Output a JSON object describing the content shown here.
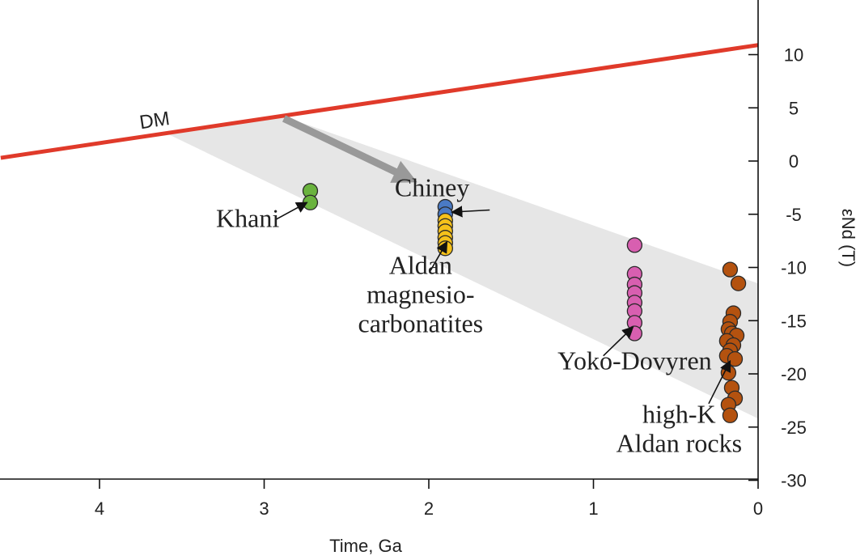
{
  "chart_data": {
    "type": "scatter",
    "title": "",
    "xlabel": "Time, Ga",
    "ylabel": "εNd (T)",
    "xlim": [
      4.6,
      0
    ],
    "ylim": [
      -30,
      14
    ],
    "xticks": [
      4,
      3,
      2,
      1,
      0
    ],
    "yticks": [
      10,
      5,
      0,
      -5,
      -10,
      -15,
      -20,
      -25,
      -30
    ],
    "grid": false,
    "legend": "none",
    "dm_line": {
      "label": "DM",
      "color": "#e03a2a",
      "points": [
        {
          "x": 4.6,
          "y": 0.3
        },
        {
          "x": 0,
          "y": 10.9
        }
      ]
    },
    "evolution_band": {
      "color": "#e6e6e6",
      "polygon": [
        {
          "x": 3.58,
          "y": 2.5
        },
        {
          "x": 2.9,
          "y": 4.3
        },
        {
          "x": 0,
          "y": -11.5
        },
        {
          "x": 0,
          "y": -24.2
        }
      ]
    },
    "trend_arrow": {
      "color": "#999999",
      "from": {
        "x": 2.88,
        "y": 4.0
      },
      "to": {
        "x": 2.07,
        "y": -2.0
      }
    },
    "series": [
      {
        "name": "Khani",
        "color": "#6ab33e",
        "points": [
          {
            "x": 2.72,
            "y": -2.8
          },
          {
            "x": 2.72,
            "y": -3.9
          }
        ],
        "label_lines": [
          "Khani"
        ],
        "label_at": {
          "x": 3.1,
          "y": -6.2
        },
        "pointer": {
          "from": {
            "x": 2.93,
            "y": -5.5
          },
          "to": {
            "x": 2.74,
            "y": -3.9
          }
        }
      },
      {
        "name": "Chiney",
        "color": "#4a7ac4",
        "points": [
          {
            "x": 1.9,
            "y": -4.3
          },
          {
            "x": 1.9,
            "y": -5.0
          }
        ],
        "label_lines": [
          "Chiney"
        ],
        "label_at": {
          "x": 1.98,
          "y": -3.3
        },
        "pointer": {
          "from": {
            "x": 1.63,
            "y": -4.6
          },
          "to": {
            "x": 1.86,
            "y": -4.8
          }
        }
      },
      {
        "name": "Aldan magnesio-carbonatites",
        "color": "#f5c11a",
        "points": [
          {
            "x": 1.9,
            "y": -5.6
          },
          {
            "x": 1.9,
            "y": -6.1
          },
          {
            "x": 1.9,
            "y": -6.6
          },
          {
            "x": 1.9,
            "y": -7.2
          },
          {
            "x": 1.9,
            "y": -7.7
          },
          {
            "x": 1.9,
            "y": -8.2
          }
        ],
        "label_lines": [
          "Aldan",
          "magnesio-",
          "carbonatites"
        ],
        "label_at": {
          "x": 2.05,
          "y": -10.6
        },
        "pointer": {
          "from": {
            "x": 1.99,
            "y": -10.3
          },
          "to": {
            "x": 1.89,
            "y": -7.6
          }
        }
      },
      {
        "name": "Yoko-Dovyren",
        "color": "#d85fb0",
        "points": [
          {
            "x": 0.75,
            "y": -7.9
          },
          {
            "x": 0.75,
            "y": -10.6
          },
          {
            "x": 0.75,
            "y": -11.6
          },
          {
            "x": 0.75,
            "y": -12.4
          },
          {
            "x": 0.75,
            "y": -13.3
          },
          {
            "x": 0.75,
            "y": -14.1
          },
          {
            "x": 0.75,
            "y": -15.2
          },
          {
            "x": 0.75,
            "y": -16.2
          }
        ],
        "label_lines": [
          "Yoko-Dovyren"
        ],
        "label_at": {
          "x": 0.75,
          "y": -19.6
        },
        "pointer": {
          "from": {
            "x": 0.94,
            "y": -18.3
          },
          "to": {
            "x": 0.76,
            "y": -15.6
          }
        }
      },
      {
        "name": "high-K Aldan rocks",
        "color": "#b4520f",
        "points": [
          {
            "x": 0.17,
            "y": -10.2
          },
          {
            "x": 0.12,
            "y": -11.5
          },
          {
            "x": 0.15,
            "y": -14.3
          },
          {
            "x": 0.17,
            "y": -15.1
          },
          {
            "x": 0.18,
            "y": -15.8
          },
          {
            "x": 0.16,
            "y": -16.2
          },
          {
            "x": 0.13,
            "y": -16.4
          },
          {
            "x": 0.19,
            "y": -16.9
          },
          {
            "x": 0.15,
            "y": -17.3
          },
          {
            "x": 0.17,
            "y": -17.8
          },
          {
            "x": 0.19,
            "y": -18.3
          },
          {
            "x": 0.14,
            "y": -18.6
          },
          {
            "x": 0.18,
            "y": -19.9
          },
          {
            "x": 0.16,
            "y": -21.3
          },
          {
            "x": 0.14,
            "y": -22.3
          },
          {
            "x": 0.18,
            "y": -22.9
          },
          {
            "x": 0.17,
            "y": -23.9
          }
        ],
        "label_lines": [
          "high-K",
          "Aldan rocks"
        ],
        "label_at": {
          "x": 0.48,
          "y": -24.6
        },
        "pointer": {
          "from": {
            "x": 0.3,
            "y": -22.8
          },
          "to": {
            "x": 0.17,
            "y": -18.8
          }
        }
      }
    ]
  }
}
